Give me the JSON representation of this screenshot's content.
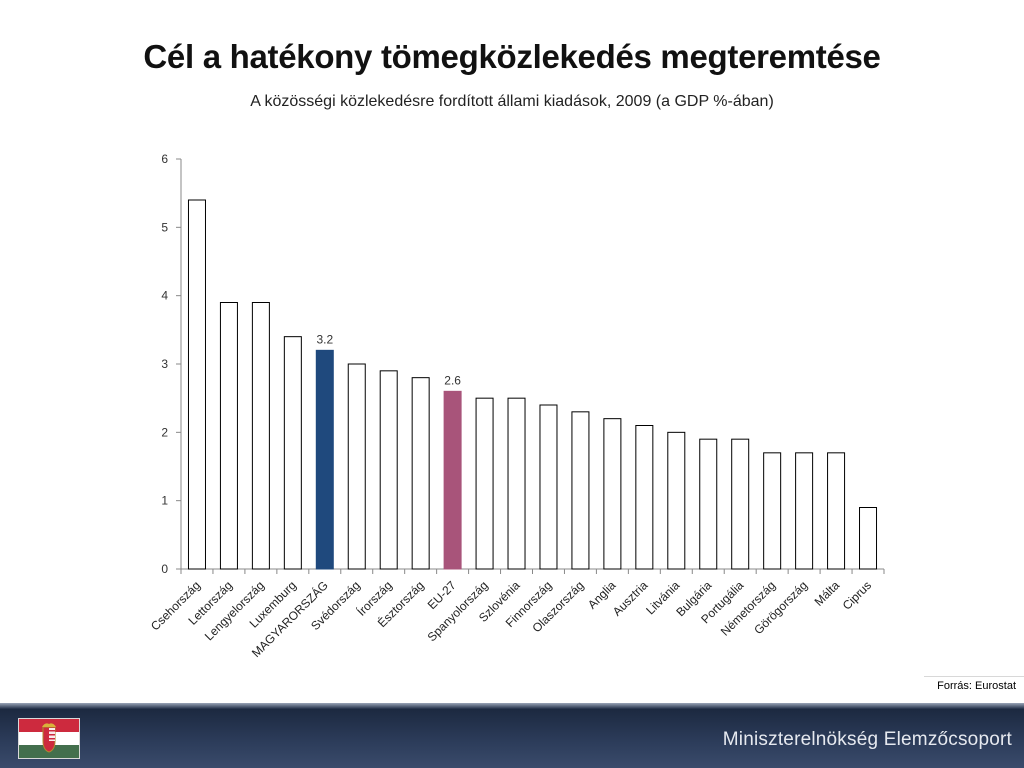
{
  "title": "Cél a hatékony tömegközlekedés megteremtése",
  "subtitle": "A közösségi közlekedésre fordított állami kiadások, 2009 (a GDP %-ában)",
  "source": "Forrás: Eurostat",
  "footer": {
    "organization": "Miniszterelnökség Elemzőcsoport",
    "flag_icon": "hungarian-flag-with-coat-of-arms"
  },
  "colors": {
    "default_bar_fill": "#ffffff",
    "default_bar_stroke": "#000000",
    "highlight_hungary": "#1f497d",
    "highlight_eu": "#a8547a",
    "footer_bg": "#2c3c5a"
  },
  "chart_data": {
    "type": "bar",
    "title": "A közösségi közlekedésre fordított állami kiadások, 2009 (a GDP %-ában)",
    "xlabel": "",
    "ylabel": "",
    "ylim": [
      0,
      6
    ],
    "yticks": [
      0,
      1,
      2,
      3,
      4,
      5,
      6
    ],
    "grid": false,
    "legend": "none",
    "categories": [
      "Csehország",
      "Lettország",
      "Lengyelország",
      "Luxemburg",
      "MAGYARORSZÁG",
      "Svédország",
      "Írország",
      "Észtország",
      "EU-27",
      "Spanyolország",
      "Szlovénia",
      "Finnország",
      "Olaszország",
      "Anglia",
      "Ausztria",
      "Litvánia",
      "Bulgária",
      "Portugália",
      "Németország",
      "Görögország",
      "Málta",
      "Ciprus"
    ],
    "values": [
      5.4,
      3.9,
      3.9,
      3.4,
      3.2,
      3.0,
      2.9,
      2.8,
      2.6,
      2.5,
      2.5,
      2.4,
      2.3,
      2.2,
      2.1,
      2.0,
      1.9,
      1.9,
      1.7,
      1.7,
      1.7,
      0.9
    ],
    "highlighted": {
      "MAGYARORSZÁG": "#1f497d",
      "EU-27": "#a8547a"
    },
    "data_labels": {
      "MAGYARORSZÁG": "3.2",
      "EU-27": "2.6"
    }
  }
}
